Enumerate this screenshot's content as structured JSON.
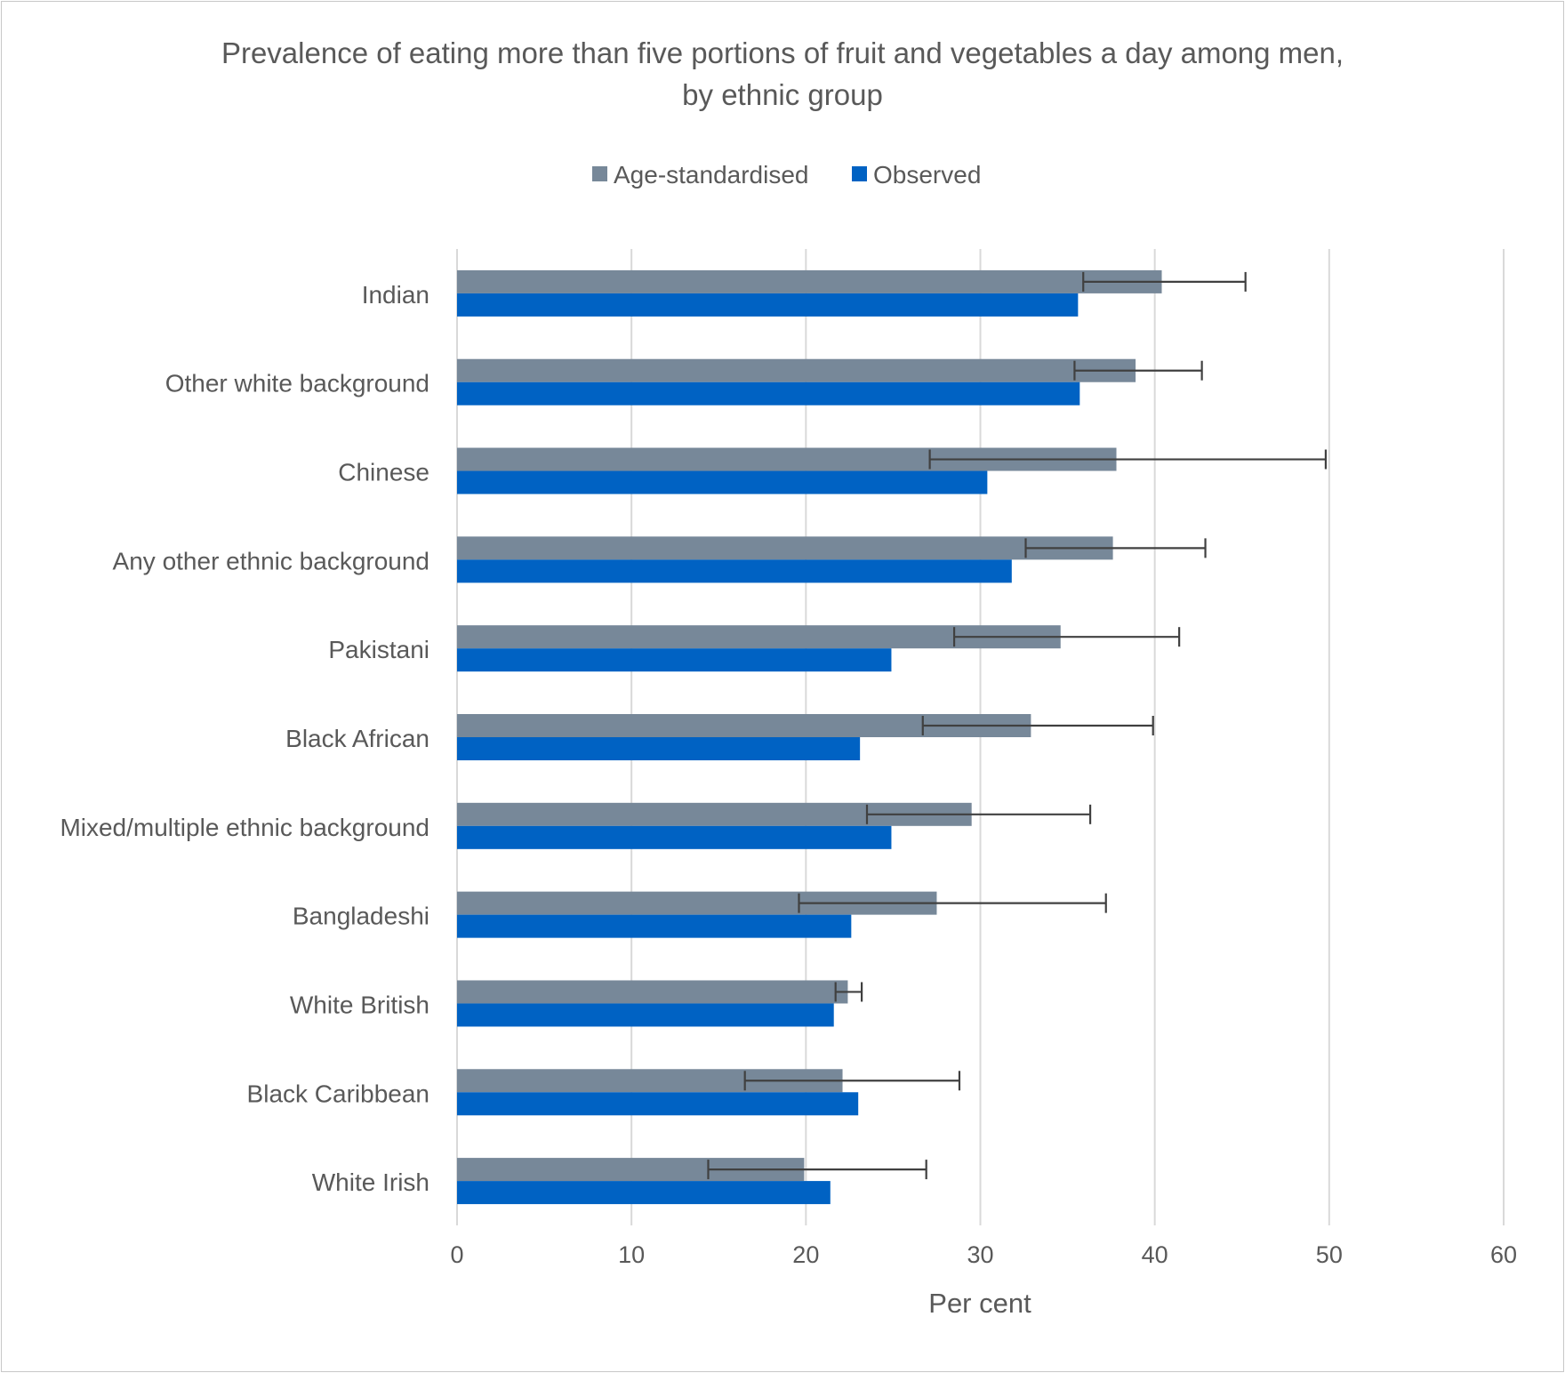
{
  "chart_data": {
    "type": "bar",
    "orientation": "horizontal",
    "title_line1": "Prevalence of eating more than five portions of fruit and vegetables a day among men,",
    "title_line2": "by ethnic group",
    "xlabel": "Per cent",
    "ylabel": "",
    "xlim": [
      0,
      60
    ],
    "xticks": [
      0,
      10,
      20,
      30,
      40,
      50,
      60
    ],
    "grid": "vertical",
    "legend_position": "top",
    "categories": [
      "Indian",
      "Other white background",
      "Chinese",
      "Any other ethnic background",
      "Pakistani",
      "Black African",
      "Mixed/multiple ethnic background",
      "Bangladeshi",
      "White British",
      "Black Caribbean",
      "White Irish"
    ],
    "series": [
      {
        "name": "Age-standardised",
        "color": "#778899",
        "values": [
          40.4,
          38.9,
          37.8,
          37.6,
          34.6,
          32.9,
          29.5,
          27.5,
          22.4,
          22.1,
          19.9
        ],
        "error_low": [
          35.9,
          35.4,
          27.1,
          32.6,
          28.5,
          26.7,
          23.5,
          19.6,
          21.7,
          16.5,
          14.4
        ],
        "error_high": [
          45.2,
          42.7,
          49.8,
          42.9,
          41.4,
          39.9,
          36.3,
          37.2,
          23.2,
          28.8,
          26.9
        ]
      },
      {
        "name": "Observed",
        "color": "#0062c3",
        "values": [
          35.6,
          35.7,
          30.4,
          31.8,
          24.9,
          23.1,
          24.9,
          22.6,
          21.6,
          23.0,
          21.4
        ]
      }
    ]
  }
}
